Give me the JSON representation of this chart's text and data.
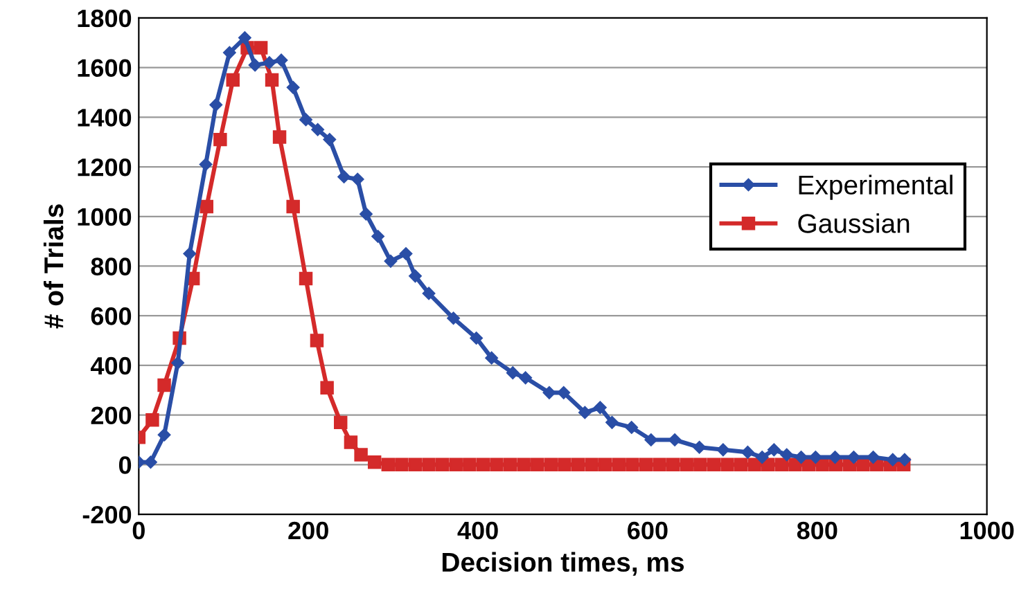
{
  "chart_data": {
    "type": "line",
    "xlabel": "Decision times, ms",
    "ylabel": "# of Trials",
    "xlim": [
      0,
      1000
    ],
    "xticks": [
      0,
      200,
      400,
      600,
      800,
      1000
    ],
    "ylim": [
      -200,
      1800
    ],
    "yticks": [
      -200,
      0,
      200,
      400,
      600,
      800,
      1000,
      1200,
      1400,
      1600,
      1800
    ],
    "grid": "y",
    "legend": "right",
    "line_style": "solid",
    "series": [
      {
        "name": "Experimental",
        "color": "#2a4ea6",
        "marker": "diamond",
        "x": [
          0,
          14,
          30,
          46,
          60,
          79,
          91,
          107,
          125,
          137,
          154,
          168,
          182,
          197,
          211,
          225,
          242,
          258,
          268,
          282,
          297,
          315,
          326,
          342,
          371,
          398,
          416,
          441,
          456,
          484,
          501,
          526,
          544,
          558,
          581,
          604,
          632,
          661,
          689,
          718,
          735,
          749,
          764,
          781,
          798,
          821,
          843,
          866,
          889,
          903
        ],
        "values": [
          10,
          10,
          120,
          410,
          850,
          1210,
          1450,
          1660,
          1720,
          1610,
          1620,
          1630,
          1520,
          1390,
          1350,
          1310,
          1160,
          1150,
          1010,
          920,
          820,
          850,
          760,
          690,
          590,
          510,
          430,
          370,
          350,
          290,
          290,
          210,
          230,
          170,
          150,
          100,
          100,
          70,
          60,
          50,
          30,
          60,
          40,
          30,
          30,
          30,
          30,
          30,
          20,
          20
        ]
      },
      {
        "name": "Gaussian",
        "color": "#d42a2a",
        "marker": "square",
        "x": [
          0,
          16,
          30,
          48,
          64,
          80,
          96,
          111,
          128,
          144,
          157,
          166,
          182,
          197,
          210,
          222,
          238,
          250,
          262,
          278,
          294,
          310,
          326,
          342,
          358,
          374,
          390,
          406,
          422,
          438,
          454,
          470,
          486,
          502,
          518,
          534,
          550,
          566,
          582,
          598,
          614,
          630,
          646,
          662,
          678,
          694,
          710,
          726,
          742,
          758,
          774,
          790,
          806,
          822,
          838,
          854,
          870,
          886,
          902
        ],
        "values": [
          110,
          180,
          320,
          510,
          750,
          1040,
          1310,
          1550,
          1680,
          1680,
          1550,
          1320,
          1040,
          750,
          500,
          310,
          170,
          90,
          40,
          10,
          0,
          0,
          0,
          0,
          0,
          0,
          0,
          0,
          0,
          0,
          0,
          0,
          0,
          0,
          0,
          0,
          0,
          0,
          0,
          0,
          0,
          0,
          0,
          0,
          0,
          0,
          0,
          0,
          0,
          0,
          0,
          0,
          0,
          0,
          0,
          0,
          0,
          0,
          0
        ]
      }
    ]
  }
}
